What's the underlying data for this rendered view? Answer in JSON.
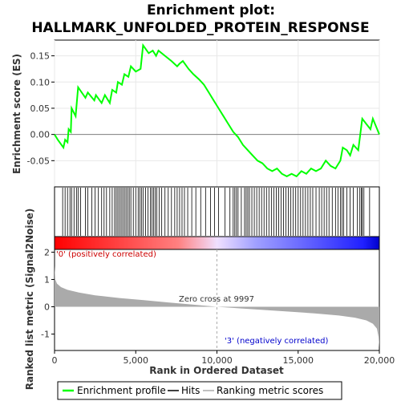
{
  "chart_data": {
    "type": "line",
    "title_line1": "Enrichment plot:",
    "title_line2": "HALLMARK_UNFOLDED_PROTEIN_RESPONSE",
    "ylabel_top": "Enrichment score (ES)",
    "ylabel_bottom": "Ranked list metric (Signal2Noise)",
    "xlabel": "Rank in Ordered Dataset",
    "xlim": [
      0,
      20000
    ],
    "ylim_top": [
      -0.1,
      0.18
    ],
    "ylim_bottom": [
      -1.6,
      2.1
    ],
    "x_ticks": [
      "0",
      "5,000",
      "10,000",
      "15,000",
      "20,000"
    ],
    "x_tick_values": [
      0,
      5000,
      10000,
      15000,
      20000
    ],
    "y_ticks_top": [
      "-0.05",
      "0.00",
      "0.05",
      "0.10",
      "0.15"
    ],
    "y_tick_values_top": [
      -0.05,
      0.0,
      0.05,
      0.1,
      0.15
    ],
    "y_ticks_bottom": [
      "-1",
      "0",
      "1",
      "2"
    ],
    "y_tick_values_bottom": [
      -1,
      0,
      1,
      2
    ],
    "zero_cross_label": "Zero cross at 9997",
    "zero_cross": 9997,
    "positive_label": "'0' (positively correlated)",
    "negative_label": "'3' (negatively correlated)",
    "enrichment_profile": [
      [
        0,
        0.0
      ],
      [
        200,
        -0.01
      ],
      [
        550,
        -0.025
      ],
      [
        650,
        -0.01
      ],
      [
        800,
        -0.015
      ],
      [
        870,
        0.01
      ],
      [
        1000,
        0.005
      ],
      [
        1050,
        0.05
      ],
      [
        1300,
        0.035
      ],
      [
        1450,
        0.09
      ],
      [
        1900,
        0.07
      ],
      [
        2050,
        0.08
      ],
      [
        2450,
        0.065
      ],
      [
        2550,
        0.075
      ],
      [
        2900,
        0.06
      ],
      [
        3100,
        0.075
      ],
      [
        3400,
        0.06
      ],
      [
        3550,
        0.085
      ],
      [
        3800,
        0.08
      ],
      [
        3900,
        0.1
      ],
      [
        4150,
        0.095
      ],
      [
        4300,
        0.115
      ],
      [
        4550,
        0.11
      ],
      [
        4700,
        0.13
      ],
      [
        5000,
        0.12
      ],
      [
        5300,
        0.125
      ],
      [
        5450,
        0.17
      ],
      [
        5800,
        0.155
      ],
      [
        6050,
        0.16
      ],
      [
        6250,
        0.15
      ],
      [
        6400,
        0.16
      ],
      [
        6800,
        0.15
      ],
      [
        7200,
        0.14
      ],
      [
        7550,
        0.13
      ],
      [
        7700,
        0.135
      ],
      [
        7900,
        0.14
      ],
      [
        8250,
        0.125
      ],
      [
        8550,
        0.115
      ],
      [
        8900,
        0.105
      ],
      [
        9200,
        0.095
      ],
      [
        9500,
        0.08
      ],
      [
        9800,
        0.065
      ],
      [
        10100,
        0.05
      ],
      [
        10400,
        0.035
      ],
      [
        10700,
        0.02
      ],
      [
        11000,
        0.005
      ],
      [
        11300,
        -0.005
      ],
      [
        11600,
        -0.02
      ],
      [
        11900,
        -0.03
      ],
      [
        12200,
        -0.04
      ],
      [
        12500,
        -0.05
      ],
      [
        12800,
        -0.055
      ],
      [
        13100,
        -0.065
      ],
      [
        13400,
        -0.07
      ],
      [
        13700,
        -0.065
      ],
      [
        14000,
        -0.075
      ],
      [
        14300,
        -0.08
      ],
      [
        14600,
        -0.075
      ],
      [
        14900,
        -0.08
      ],
      [
        15200,
        -0.07
      ],
      [
        15500,
        -0.075
      ],
      [
        15800,
        -0.065
      ],
      [
        16100,
        -0.07
      ],
      [
        16400,
        -0.065
      ],
      [
        16700,
        -0.05
      ],
      [
        17000,
        -0.06
      ],
      [
        17300,
        -0.065
      ],
      [
        17600,
        -0.05
      ],
      [
        17750,
        -0.025
      ],
      [
        18000,
        -0.03
      ],
      [
        18200,
        -0.04
      ],
      [
        18400,
        -0.02
      ],
      [
        18700,
        -0.03
      ],
      [
        18950,
        0.03
      ],
      [
        19200,
        0.02
      ],
      [
        19450,
        0.01
      ],
      [
        19600,
        0.03
      ],
      [
        20000,
        0.0
      ]
    ],
    "hits": [
      500,
      650,
      800,
      950,
      1050,
      1200,
      1350,
      1450,
      1600,
      1900,
      2050,
      2300,
      2500,
      2700,
      2900,
      3050,
      3200,
      3400,
      3550,
      3700,
      3800,
      3900,
      4000,
      4100,
      4200,
      4300,
      4400,
      4500,
      4600,
      4700,
      4850,
      5000,
      5150,
      5250,
      5350,
      5450,
      5600,
      5750,
      5900,
      6000,
      6100,
      6200,
      6300,
      6450,
      6600,
      6800,
      7000,
      7200,
      7400,
      7550,
      7700,
      7850,
      8000,
      8200,
      8450,
      8700,
      9000,
      9300,
      9600,
      9850,
      10100,
      10500,
      10800,
      11000,
      11100,
      11200,
      11300,
      11500,
      11700,
      11800,
      11900,
      12000,
      12150,
      12300,
      12450,
      12600,
      12750,
      12900,
      13050,
      13200,
      13350,
      13500,
      13650,
      13800,
      13950,
      14100,
      14250,
      14400,
      14550,
      14700,
      14850,
      15000,
      15150,
      15300,
      15450,
      15600,
      15750,
      15900,
      16100,
      16300,
      16450,
      16600,
      16750,
      16900,
      17100,
      17300,
      17450,
      17600,
      17700,
      17800,
      18000,
      18200,
      18400,
      18650,
      18800,
      18900,
      18950,
      19050,
      19400
    ],
    "ranked_metric": [
      [
        0,
        1.5
      ],
      [
        50,
        1.0
      ],
      [
        150,
        0.85
      ],
      [
        400,
        0.72
      ],
      [
        800,
        0.62
      ],
      [
        1500,
        0.52
      ],
      [
        2500,
        0.42
      ],
      [
        4000,
        0.32
      ],
      [
        5500,
        0.24
      ],
      [
        7000,
        0.16
      ],
      [
        8500,
        0.08
      ],
      [
        9997,
        0.0
      ],
      [
        11500,
        -0.06
      ],
      [
        13000,
        -0.12
      ],
      [
        14500,
        -0.18
      ],
      [
        16000,
        -0.24
      ],
      [
        17500,
        -0.32
      ],
      [
        18500,
        -0.4
      ],
      [
        19200,
        -0.5
      ],
      [
        19600,
        -0.62
      ],
      [
        19850,
        -0.8
      ],
      [
        19950,
        -1.1
      ],
      [
        20000,
        -1.5
      ]
    ],
    "legend": {
      "enrichment": "Enrichment profile",
      "hits": "Hits",
      "ranking": "Ranking metric scores"
    },
    "colors": {
      "profile": "#00ff00",
      "hits": "#000000",
      "metric_fill": "#aaaaaa",
      "positive_text": "#cc0000",
      "negative_text": "#0000cc",
      "zero_line": "#aaaaaa"
    }
  }
}
